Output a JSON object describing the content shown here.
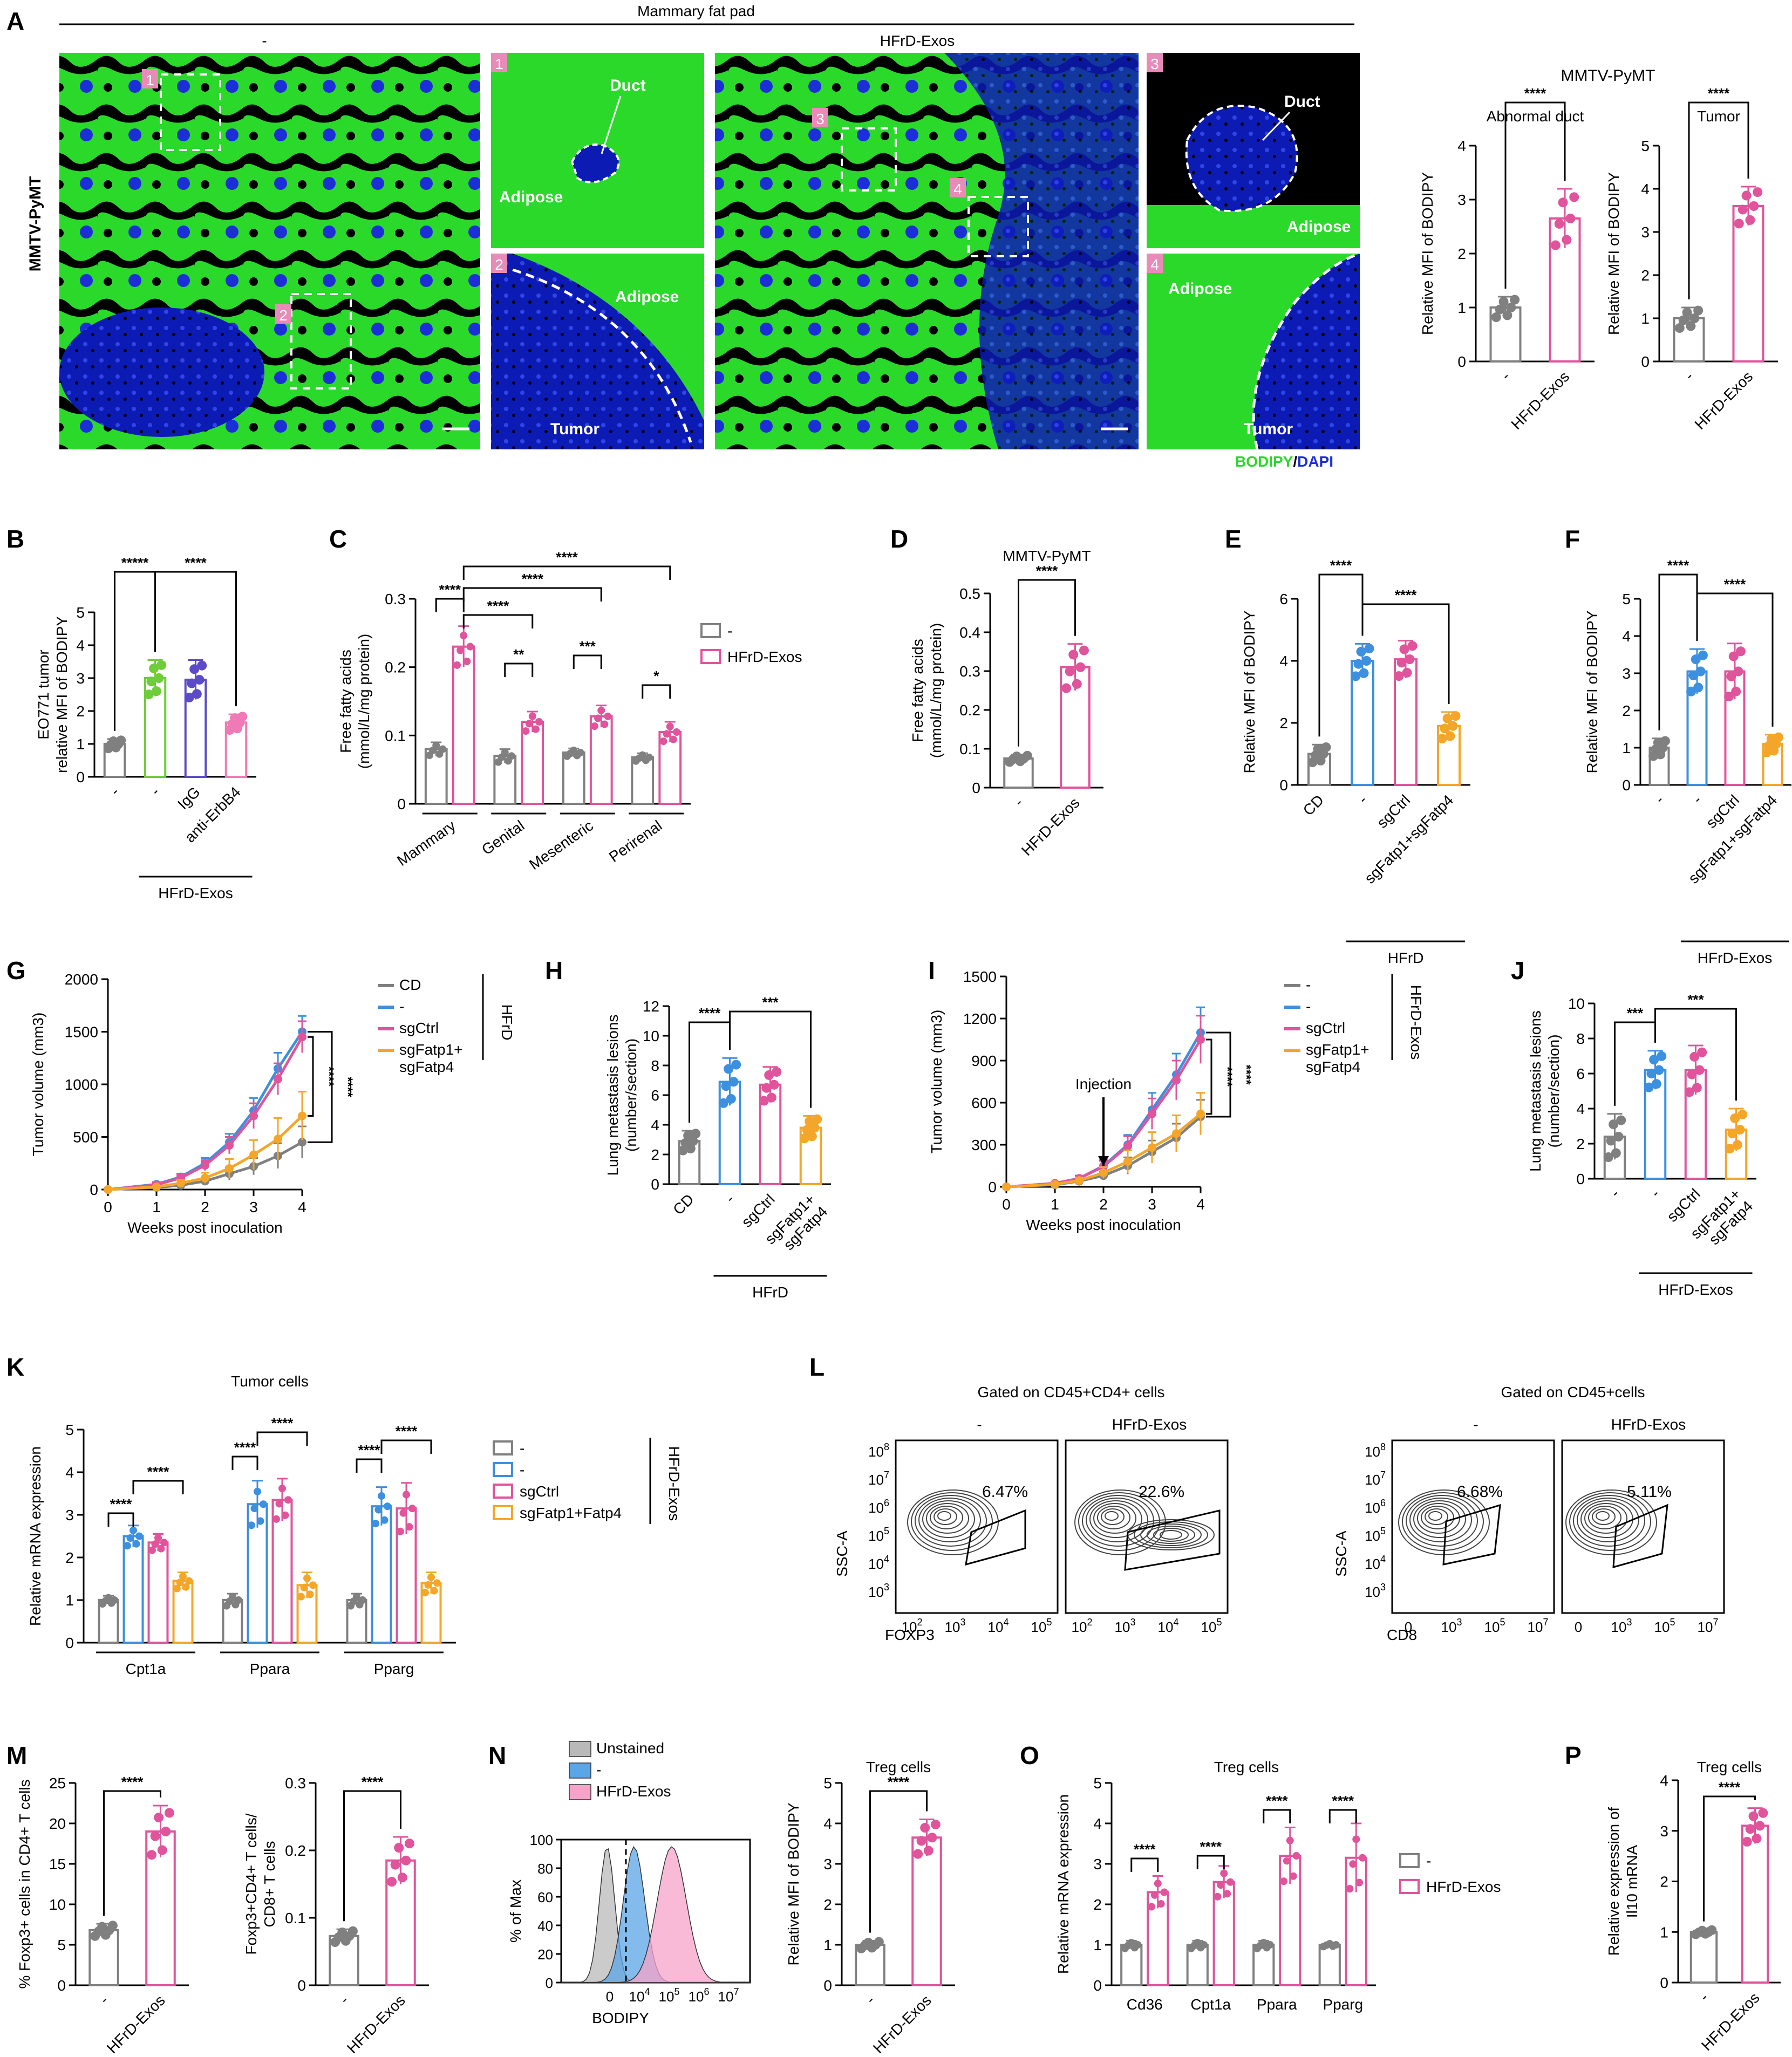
{
  "panel_letters": [
    "A",
    "B",
    "C",
    "D",
    "E",
    "F",
    "G",
    "H",
    "I",
    "J",
    "K",
    "L",
    "M",
    "N",
    "O",
    "P"
  ],
  "panel_a": {
    "header": "Mammary fat pad",
    "group_minus": "-",
    "group_exos": "HFrD-Exos",
    "row_label": "MMTV-PyMT",
    "inset_numbers": [
      "1",
      "2",
      "3",
      "4"
    ],
    "labels": {
      "duct": "Duct",
      "adipose": "Adipose",
      "tumor": "Tumor"
    },
    "stain_bodipy": "BODIPY",
    "stain_sep": "/",
    "stain_dapi": "DAPI",
    "model_title": "MMTV-PyMT",
    "colors": {
      "bodipy": "#2bd92b",
      "dapi": "#1c2fd6",
      "background": "#000000"
    }
  },
  "colors": {
    "grey": "#808080",
    "pink": "#e0549b",
    "blue": "#3d8fe0",
    "green": "#6fcc3a",
    "purple": "#5b4bc8",
    "orange": "#f4a62a",
    "lightpink": "#f07ab5"
  },
  "chart_data": [
    {
      "id": "A1",
      "type": "bar",
      "title": "Abnormal duct",
      "ylabel": "Relative MFI of BODIPY",
      "categories": [
        "-",
        "HFrD-Exos"
      ],
      "values": [
        1.0,
        2.65
      ],
      "errors": [
        0.2,
        0.55
      ],
      "ylim": [
        0,
        4
      ],
      "yticks": [
        0,
        1,
        2,
        3,
        4
      ],
      "sig": [
        {
          "a": 0,
          "b": 1,
          "text": "****"
        }
      ]
    },
    {
      "id": "A2",
      "type": "bar",
      "title": "Tumor",
      "ylabel": "Relative MFI of BODIPY",
      "categories": [
        "-",
        "HFrD-Exos"
      ],
      "values": [
        1.0,
        3.6
      ],
      "errors": [
        0.25,
        0.45
      ],
      "ylim": [
        0,
        5
      ],
      "yticks": [
        0,
        1,
        2,
        3,
        4,
        5
      ],
      "sig": [
        {
          "a": 0,
          "b": 1,
          "text": "****"
        }
      ]
    },
    {
      "id": "B",
      "type": "bar",
      "ylabel": "EO771 tumor relative MFI of BODIPY",
      "categories": [
        "-",
        "-",
        "IgG",
        "anti-ErbB4"
      ],
      "group_label": "HFrD-Exos",
      "values": [
        1.0,
        3.0,
        2.95,
        1.65
      ],
      "errors": [
        0.15,
        0.55,
        0.6,
        0.25
      ],
      "ylim": [
        0,
        5
      ],
      "yticks": [
        0,
        1,
        2,
        3,
        4,
        5
      ],
      "sig": [
        {
          "a": 0,
          "b": 1,
          "text": "*****"
        },
        {
          "a": 1,
          "b": 3,
          "text": "****"
        }
      ]
    },
    {
      "id": "C",
      "type": "bar",
      "ylabel": "Free fatty acids (mmol/L/mg protein)",
      "categories": [
        "Mammary",
        "Genital",
        "Mesenteric",
        "Perirenal"
      ],
      "series": [
        {
          "name": "-",
          "values": [
            0.08,
            0.07,
            0.075,
            0.068
          ],
          "errors": [
            0.01,
            0.01,
            0.006,
            0.006
          ]
        },
        {
          "name": "HFrD-Exos",
          "values": [
            0.23,
            0.12,
            0.128,
            0.105
          ],
          "errors": [
            0.03,
            0.015,
            0.016,
            0.015
          ]
        }
      ],
      "ylim": [
        0,
        0.3
      ],
      "yticks": [
        0,
        0.1,
        0.2,
        0.3
      ],
      "sig": [
        "****",
        "**",
        "***",
        "*",
        "****",
        "****",
        "****"
      ]
    },
    {
      "id": "D",
      "type": "bar",
      "title": "MMTV-PyMT",
      "ylabel": "Free fatty acids (mmol/L/mg protein)",
      "categories": [
        "-",
        "HFrD-Exos"
      ],
      "values": [
        0.075,
        0.31
      ],
      "errors": [
        0.01,
        0.06
      ],
      "ylim": [
        0,
        0.5
      ],
      "yticks": [
        0,
        0.1,
        0.2,
        0.3,
        0.4,
        0.5
      ],
      "sig": [
        {
          "a": 0,
          "b": 1,
          "text": "****"
        }
      ]
    },
    {
      "id": "E",
      "type": "bar",
      "ylabel": "Relative MFI of BODIPY",
      "categories": [
        "CD",
        "-",
        "sgCtrl",
        "sgFatp1+sgFatp4"
      ],
      "group_label": "HFrD",
      "values": [
        1.0,
        4.0,
        4.05,
        1.9
      ],
      "errors": [
        0.3,
        0.55,
        0.6,
        0.45
      ],
      "ylim": [
        0,
        6
      ],
      "yticks": [
        0,
        2,
        4,
        6
      ],
      "sig": [
        {
          "a": 0,
          "b": 1,
          "text": "****"
        },
        {
          "a": 1,
          "b": 3,
          "text": "****"
        }
      ]
    },
    {
      "id": "F",
      "type": "bar",
      "ylabel": "Relative MFI of BODIPY",
      "categories": [
        "-",
        "-",
        "sgCtrl",
        "sgFatp1+sgFatp4"
      ],
      "group_label": "HFrD-Exos",
      "values": [
        1.0,
        3.05,
        3.05,
        1.1
      ],
      "errors": [
        0.25,
        0.6,
        0.75,
        0.25
      ],
      "ylim": [
        0,
        5
      ],
      "yticks": [
        0,
        1,
        2,
        3,
        4,
        5
      ],
      "sig": [
        {
          "a": 0,
          "b": 1,
          "text": "****"
        },
        {
          "a": 1,
          "b": 3,
          "text": "****"
        }
      ]
    },
    {
      "id": "G",
      "type": "line",
      "xlabel": "Weeks post inoculation",
      "ylabel": "Tumor volume (mm3)",
      "x": [
        0,
        1,
        1.5,
        2,
        2.5,
        3,
        3.5,
        4
      ],
      "series": [
        {
          "name": "CD",
          "values": [
            0,
            20,
            40,
            80,
            150,
            220,
            320,
            450
          ],
          "errors": [
            0,
            10,
            20,
            30,
            60,
            80,
            120,
            150
          ]
        },
        {
          "name": "-",
          "values": [
            0,
            50,
            120,
            250,
            450,
            750,
            1150,
            1500
          ],
          "errors": [
            0,
            20,
            30,
            50,
            80,
            120,
            150,
            150
          ]
        },
        {
          "name": "sgCtrl",
          "values": [
            0,
            45,
            110,
            230,
            420,
            700,
            1050,
            1450
          ],
          "errors": [
            0,
            20,
            30,
            50,
            80,
            120,
            150,
            150
          ]
        },
        {
          "name": "sgFatp1+\nsgFatp4",
          "values": [
            0,
            25,
            60,
            110,
            200,
            330,
            480,
            700
          ],
          "errors": [
            0,
            10,
            30,
            50,
            90,
            140,
            200,
            230
          ]
        }
      ],
      "legend_group": "HFrD",
      "ylim": [
        0,
        2000
      ],
      "yticks": [
        0,
        500,
        1000,
        1500,
        2000
      ],
      "xticks": [
        0,
        1,
        2,
        3,
        4
      ],
      "sig": [
        "****",
        "****"
      ]
    },
    {
      "id": "H",
      "type": "bar",
      "ylabel": "Lung metastasis lesions (number/section)",
      "categories": [
        "CD",
        "-",
        "sgCtrl",
        "sgFatp1+\nsgFatp4"
      ],
      "group_label": "HFrD",
      "values": [
        2.9,
        6.9,
        6.7,
        3.8
      ],
      "errors": [
        0.7,
        1.6,
        1.2,
        0.8
      ],
      "ylim": [
        0,
        12
      ],
      "yticks": [
        0,
        2,
        4,
        6,
        8,
        10,
        12
      ],
      "sig": [
        {
          "a": 0,
          "b": 1,
          "text": "****"
        },
        {
          "a": 1,
          "b": 3,
          "text": "***"
        }
      ]
    },
    {
      "id": "I",
      "type": "line",
      "xlabel": "Weeks post inoculation",
      "ylabel": "Tumor volume (mm3)",
      "annotation": "Injection",
      "x": [
        0,
        1,
        1.5,
        2,
        2.5,
        3,
        3.5,
        4
      ],
      "series": [
        {
          "name": "-",
          "values": [
            0,
            15,
            40,
            80,
            150,
            250,
            350,
            500
          ],
          "errors": [
            0,
            10,
            15,
            30,
            60,
            80,
            100,
            120
          ]
        },
        {
          "name": "-",
          "values": [
            0,
            25,
            60,
            150,
            300,
            550,
            800,
            1100
          ],
          "errors": [
            0,
            10,
            20,
            40,
            70,
            120,
            150,
            180
          ]
        },
        {
          "name": "sgCtrl",
          "values": [
            0,
            25,
            60,
            145,
            290,
            520,
            760,
            1050
          ],
          "errors": [
            0,
            10,
            20,
            40,
            70,
            110,
            140,
            170
          ]
        },
        {
          "name": "sgFatp1+\nsgFatp4",
          "values": [
            0,
            18,
            45,
            100,
            180,
            280,
            380,
            520
          ],
          "errors": [
            0,
            10,
            20,
            40,
            80,
            110,
            130,
            150
          ]
        }
      ],
      "legend_group": "HFrD-Exos",
      "ylim": [
        0,
        1500
      ],
      "yticks": [
        0,
        300,
        600,
        900,
        1200,
        1500
      ],
      "xticks": [
        0,
        1,
        2,
        3,
        4
      ],
      "sig": [
        "****",
        "****"
      ]
    },
    {
      "id": "J",
      "type": "bar",
      "ylabel": "Lung metastasis lesions (number/section)",
      "categories": [
        "-",
        "-",
        "sgCtrl",
        "sgFatp1+\nsgFatp4"
      ],
      "group_label": "HFrD-Exos",
      "values": [
        2.4,
        6.2,
        6.2,
        2.8
      ],
      "errors": [
        1.3,
        1.1,
        1.4,
        1.2
      ],
      "ylim": [
        0,
        10
      ],
      "yticks": [
        0,
        2,
        4,
        6,
        8,
        10
      ],
      "sig": [
        {
          "a": 0,
          "b": 1,
          "text": "***"
        },
        {
          "a": 1,
          "b": 3,
          "text": "***"
        }
      ]
    },
    {
      "id": "K",
      "type": "bar",
      "title": "Tumor cells",
      "ylabel": "Relative mRNA expression",
      "categories": [
        "Cpt1a",
        "Ppara",
        "Pparg"
      ],
      "series": [
        {
          "name": "-",
          "values": [
            1.0,
            1.0,
            1.0
          ],
          "errors": [
            0.1,
            0.15,
            0.15
          ]
        },
        {
          "name": "-",
          "values": [
            2.5,
            3.25,
            3.2
          ],
          "errors": [
            0.25,
            0.55,
            0.45
          ]
        },
        {
          "name": "sgCtrl",
          "values": [
            2.35,
            3.35,
            3.15
          ],
          "errors": [
            0.2,
            0.5,
            0.6
          ]
        },
        {
          "name": "sgFatp1+Fatp4",
          "values": [
            1.45,
            1.35,
            1.4
          ],
          "errors": [
            0.2,
            0.3,
            0.25
          ]
        }
      ],
      "legend_group": "HFrD-Exos",
      "ylim": [
        0,
        5
      ],
      "yticks": [
        0,
        1,
        2,
        3,
        4,
        5
      ],
      "sig": [
        "****",
        "****",
        "****",
        "****",
        "****",
        "****"
      ]
    },
    {
      "id": "M1",
      "type": "bar",
      "ylabel": "% Foxp3+ cells in CD4+ T cells",
      "categories": [
        "-",
        "HFrD-Exos"
      ],
      "values": [
        6.8,
        19.0
      ],
      "errors": [
        0.8,
        3.2
      ],
      "ylim": [
        0,
        25
      ],
      "yticks": [
        0,
        5,
        10,
        15,
        20,
        25
      ],
      "sig": [
        {
          "a": 0,
          "b": 1,
          "text": "****"
        }
      ]
    },
    {
      "id": "M2",
      "type": "bar",
      "ylabel": "Foxp3+CD4+ T cells/CD8+ T cells",
      "categories": [
        "-",
        "HFrD-Exos"
      ],
      "values": [
        0.073,
        0.185
      ],
      "errors": [
        0.01,
        0.035
      ],
      "ylim": [
        0,
        0.3
      ],
      "yticks": [
        0,
        0.1,
        0.2,
        0.3
      ],
      "sig": [
        {
          "a": 0,
          "b": 1,
          "text": "****"
        }
      ]
    },
    {
      "id": "N2",
      "type": "bar",
      "title": "Treg cells",
      "ylabel": "Relative MFI of BODIPY",
      "categories": [
        "-",
        "HFrD-Exos"
      ],
      "values": [
        1.0,
        3.65
      ],
      "errors": [
        0.1,
        0.45
      ],
      "ylim": [
        0,
        5
      ],
      "yticks": [
        0,
        1,
        2,
        3,
        4,
        5
      ],
      "sig": [
        {
          "a": 0,
          "b": 1,
          "text": "****"
        }
      ]
    },
    {
      "id": "O",
      "type": "bar",
      "title": "Treg cells",
      "ylabel": "Relative mRNA expression",
      "categories": [
        "Cd36",
        "Cpt1a",
        "Ppara",
        "Pparg"
      ],
      "series": [
        {
          "name": "-",
          "values": [
            1.0,
            1.0,
            1.0,
            1.0
          ],
          "errors": [
            0.1,
            0.1,
            0.1,
            0.05
          ]
        },
        {
          "name": "HFrD-Exos",
          "values": [
            2.3,
            2.55,
            3.2,
            3.15
          ],
          "errors": [
            0.4,
            0.4,
            0.7,
            0.85
          ]
        }
      ],
      "ylim": [
        0,
        5
      ],
      "yticks": [
        0,
        1,
        2,
        3,
        4,
        5
      ],
      "sig": [
        "****",
        "****",
        "****",
        "****"
      ]
    },
    {
      "id": "P",
      "type": "bar",
      "title": "Treg cells",
      "ylabel": "Relative expression of Il10 mRNA",
      "categories": [
        "-",
        "HFrD-Exos"
      ],
      "values": [
        1.0,
        3.1
      ],
      "errors": [
        0.05,
        0.35
      ],
      "ylim": [
        0,
        4
      ],
      "yticks": [
        0,
        1,
        2,
        3,
        4
      ],
      "sig": [
        {
          "a": 0,
          "b": 1,
          "text": "****"
        }
      ]
    }
  ],
  "panel_l": {
    "left_title": "Gated on CD45+CD4+ cells",
    "right_title": "Gated on CD45+cells",
    "group_minus": "-",
    "group_exos": "HFrD-Exos",
    "ylabel": "SSC-A",
    "left_xlabel": "FOXP3",
    "right_xlabel": "CD8",
    "percentages": [
      "6.47%",
      "22.6%",
      "6.68%",
      "5.11%"
    ],
    "y_ticks": [
      "10^8",
      "10^7",
      "10^6",
      "10^5",
      "10^4",
      "10^3"
    ],
    "left_x_ticks": [
      "10^2",
      "10^3",
      "10^4",
      "10^5"
    ],
    "right_x_ticks": [
      "0",
      "10^3",
      "10^5",
      "10^7"
    ]
  },
  "panel_n_hist": {
    "legend": [
      "Unstained",
      "-",
      "HFrD-Exos"
    ],
    "ylabel": "% of Max",
    "xlabel": "BODIPY",
    "y_ticks": [
      0,
      20,
      40,
      60,
      80,
      100
    ],
    "x_ticks": [
      "0",
      "10^4",
      "10^5",
      "10^6",
      "10^7"
    ],
    "colors": [
      "#b9b9b9",
      "#5aa6e6",
      "#f5a3c9"
    ]
  }
}
